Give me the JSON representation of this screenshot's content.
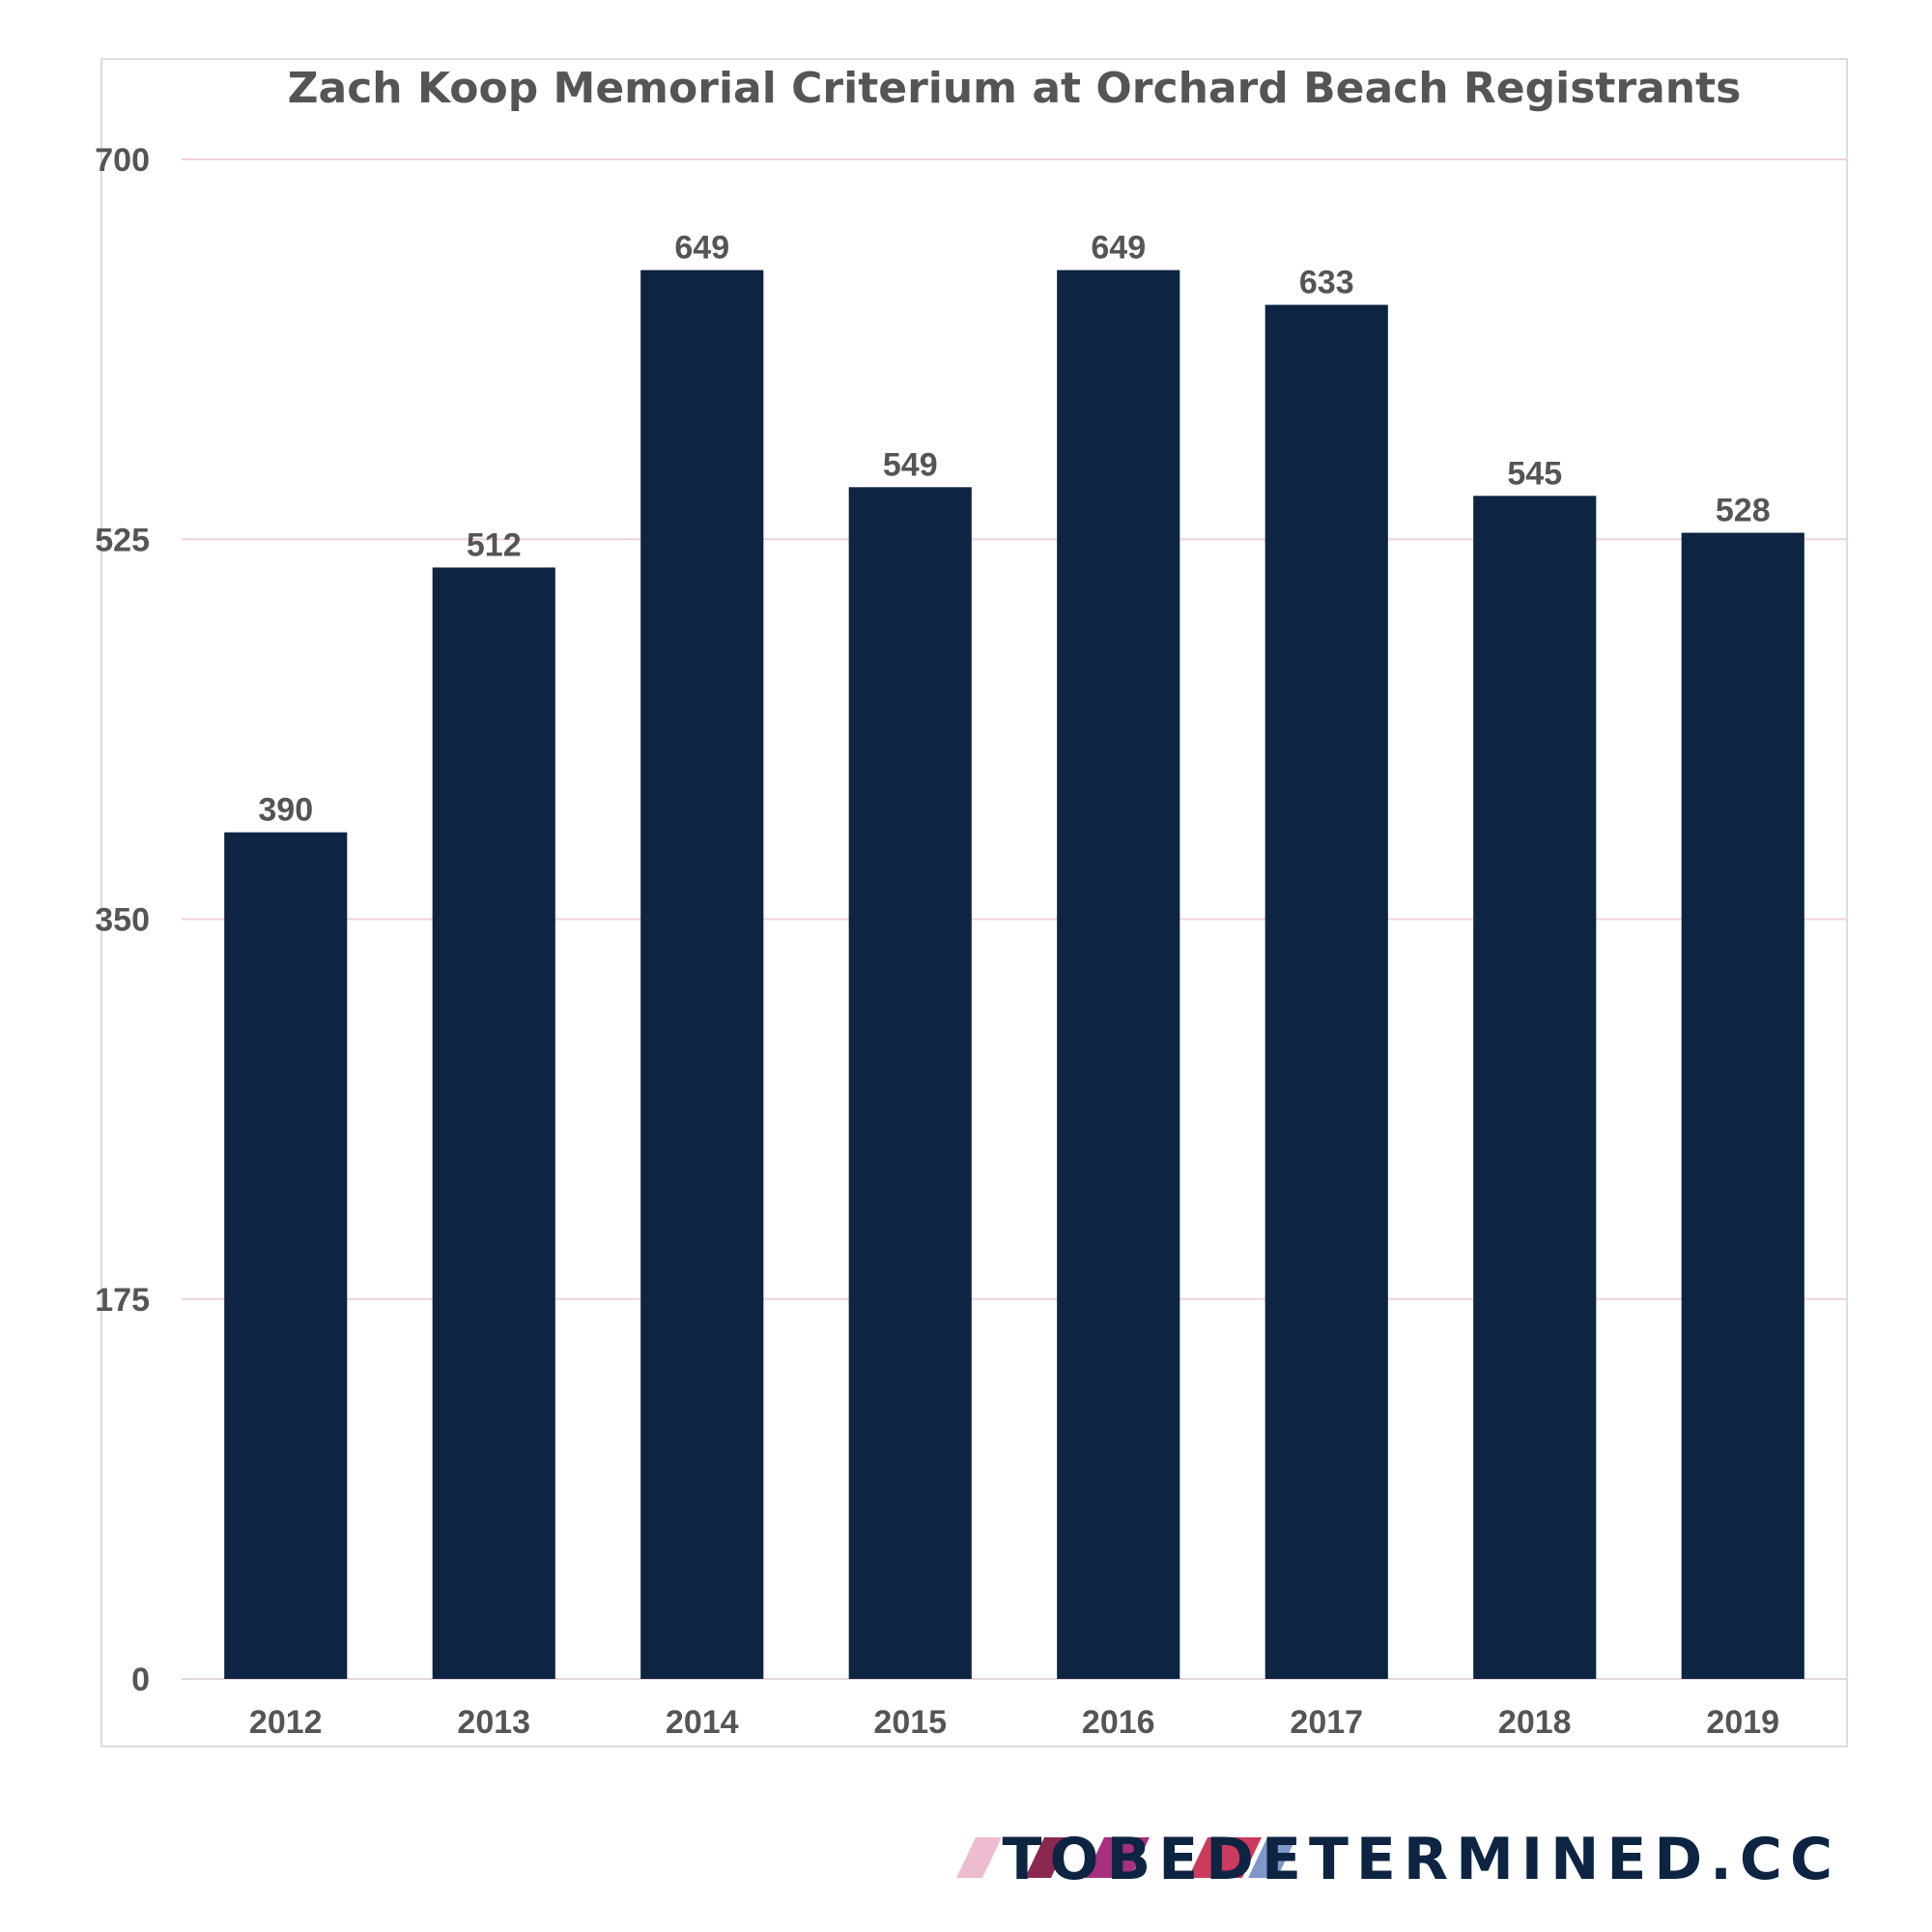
{
  "chart_data": {
    "type": "bar",
    "title": "Zach Koop Memorial Criterium at Orchard Beach Registrants",
    "xlabel": "",
    "ylabel": "",
    "categories": [
      "2012",
      "2013",
      "2014",
      "2015",
      "2016",
      "2017",
      "2018",
      "2019"
    ],
    "values": [
      390,
      512,
      649,
      549,
      649,
      633,
      545,
      528
    ],
    "data_labels": [
      "390",
      "512",
      "649",
      "549",
      "649",
      "633",
      "545",
      "528"
    ],
    "ylim": [
      0,
      700
    ],
    "yticks": [
      0,
      175,
      350,
      525,
      700
    ],
    "ytick_labels": [
      "0",
      "175",
      "350",
      "525",
      "700"
    ],
    "grid": true,
    "legend": "none"
  },
  "colors": {
    "bar": "#0d2442",
    "gridline": "#efd2dc",
    "text": "#555555",
    "frame": "#dddddd",
    "brand_text": "#0d2442",
    "brand_stripes": [
      "#eebcd0",
      "#8b2850",
      "#a4307e",
      "#cc3b5d",
      "#7f98c9"
    ]
  },
  "branding": {
    "site": "TOBEDETERMINED.CC",
    "logo_icon": "diagonal-stripes-icon"
  }
}
